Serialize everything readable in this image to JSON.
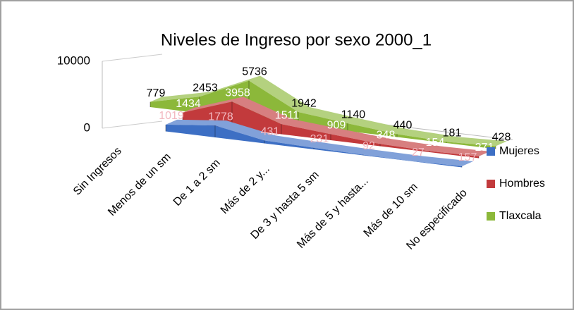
{
  "chart_data": {
    "type": "area3d",
    "title": "Niveles de Ingreso por sexo 2000_1",
    "categories": [
      "Sin Ingresos",
      "Menos de un sm",
      "De 1 a 2 sm",
      "Más de 2 y...",
      "De 3 y  hasta 5 sm",
      "Más de 5 y hasta...",
      "Más de 10 sm",
      "No especificado"
    ],
    "series": [
      {
        "name": "Mujeres",
        "color": "#3d6fc4",
        "values": [
          null,
          1019,
          1778,
          431,
          231,
          92,
          27,
          157
        ]
      },
      {
        "name": "Hombres",
        "color": "#c23a3c",
        "values": [
          null,
          1434,
          3958,
          1511,
          909,
          348,
          154,
          271
        ]
      },
      {
        "name": "Tlaxcala",
        "color": "#8cb83a",
        "values": [
          779,
          2453,
          5736,
          1942,
          1140,
          440,
          181,
          428
        ]
      }
    ],
    "ylim": [
      0,
      10000
    ],
    "yticks": [
      0,
      10000
    ],
    "legend": "right"
  }
}
